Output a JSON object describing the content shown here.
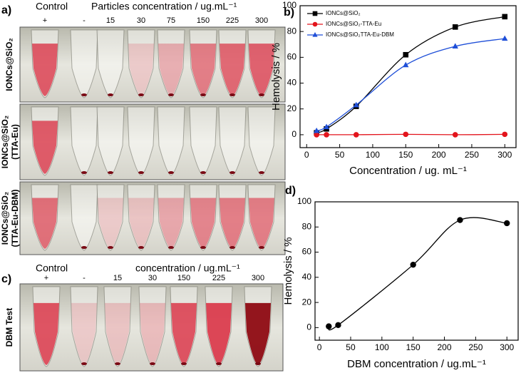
{
  "photo_a": {
    "panel_label": "a)",
    "control_label": "Control",
    "concentration_label": "Particles concentration / ug.mL⁻¹",
    "tube_labels": [
      "+",
      "-",
      "15",
      "30",
      "75",
      "150",
      "225",
      "300"
    ],
    "row_labels": [
      [
        "IONCs@SiO₂"
      ],
      [
        "IONCs@SiO₂",
        "(TTA-Eu)"
      ],
      [
        "IONCs@SiO₂",
        "(TTA-Eu-DBM)"
      ]
    ]
  },
  "photo_c": {
    "panel_label": "c)",
    "control_label": "Control",
    "concentration_label": "concentration / ug.mL⁻¹",
    "tube_labels": [
      "+",
      "-",
      "15",
      "30",
      "150",
      "225",
      "300"
    ],
    "row_labels": [
      [
        "DBM Test"
      ]
    ]
  },
  "chart_data": [
    {
      "type": "line",
      "panel_label": "b)",
      "xlabel": "Concentration / ug. mL⁻¹",
      "ylabel": "Hemolysis / %",
      "x": [
        15,
        30,
        75,
        150,
        225,
        300
      ],
      "series": [
        {
          "name": "IONCs@SiO₂",
          "color": "#000000",
          "marker": "square",
          "values": [
            1.5,
            4.5,
            22,
            62,
            83.5,
            91.5
          ]
        },
        {
          "name": "IONCs@SiO₂-TTA-Eu",
          "color": "#e3141c",
          "marker": "circle",
          "values": [
            0,
            0,
            0,
            0.3,
            0,
            0.3
          ]
        },
        {
          "name": "IONCs@SiO₂TTA-Eu-DBM",
          "color": "#1f4fd8",
          "marker": "triangle",
          "values": [
            3,
            6,
            23,
            54,
            68.5,
            74.5
          ]
        }
      ],
      "xlim": [
        -10,
        317
      ],
      "xticks": [
        0,
        50,
        100,
        150,
        200,
        250,
        300
      ],
      "ylim": [
        -10,
        100
      ],
      "yticks": [
        0,
        20,
        40,
        60,
        80,
        100
      ],
      "legend": "upper-left"
    },
    {
      "type": "line",
      "panel_label": "d)",
      "xlabel": "DBM concentration / ug.mL⁻¹",
      "ylabel": "Hemolysis / %",
      "x": [
        15,
        30,
        150,
        225,
        300
      ],
      "values": [
        1,
        2,
        50,
        85.5,
        83
      ],
      "color": "#000000",
      "marker": "circle",
      "xlim": [
        -7,
        318
      ],
      "xticks": [
        0,
        50,
        100,
        150,
        200,
        250,
        300
      ],
      "ylim": [
        -10,
        100
      ],
      "yticks": [
        0,
        20,
        40,
        60,
        80,
        100
      ]
    }
  ]
}
